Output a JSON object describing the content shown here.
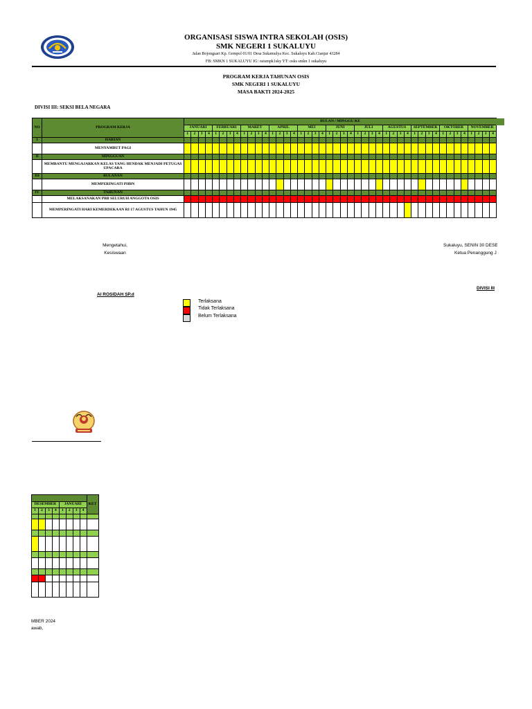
{
  "header": {
    "org_line1": "ORGANISASI SISWA INTRA SEKOLAH (OSIS)",
    "org_line2": "SMK NEGERI 1 SUKALUYU",
    "address": "Jalan Bojongsari Kp. Gempol 01/01 Desa Sukamulya Kec. Sukaluyu Kab.Cianjur 43284",
    "social": "FB: SMKN 1 SUKALUYU IG: osismpk1sky YT: osks smkn 1 sukaluyu",
    "logo_icon": "school-emblem-icon"
  },
  "title": {
    "line1": "PROGRAM KERJA TAHUNAN OSIS",
    "line2": "SMK NEGERI 1 SUKALUYU",
    "line3": "MASA BAKTI 2024-2025"
  },
  "division": "DIVISI III: SEKSI BELA NEGARA",
  "table": {
    "col_no": "NO",
    "col_program": "PROGRAM KERJA",
    "col_period": "BULAN / MINGGU KE",
    "months": [
      "JANUARI",
      "FEBRUARI",
      "MARET",
      "APRIL",
      "MEI",
      "JUNI",
      "JULI",
      "AGUSTUS",
      "SEPTEMBER",
      "OKTOBER",
      "NOVEMBER"
    ],
    "weeks": [
      "1",
      "2",
      "3",
      "4"
    ],
    "sections": [
      {
        "no": "I",
        "label": "HARIAN"
      },
      {
        "no": "II",
        "label": "MINGGUAN"
      },
      {
        "no": "III",
        "label": "BULANAN"
      },
      {
        "no": "IV",
        "label": "TAHUNAN"
      }
    ],
    "programs": [
      {
        "label": "MENYAMBUT PAGI",
        "status": "all-yellow"
      },
      {
        "label": "MEMBANTU MENGAJARKAN KELAS YANG HENDAK MENJADI PETUGAS UPACARA",
        "status": "all-yellow"
      },
      {
        "label": "MEMPERINGATI PHBN",
        "status": "selected-yellow",
        "weeks_done": [
          13,
          20,
          27,
          33,
          39,
          49
        ]
      },
      {
        "label": "MELAKSANAKAN PBB SELURUH ANGGOTA OSIS",
        "status": "all-red"
      },
      {
        "label": "MEMPERINGATI HARI KEMERDEKAAN RI 17 AGUSTUS TAHUN 1945",
        "status": "selected-yellow",
        "weeks_done": [
          31
        ]
      }
    ]
  },
  "page2": {
    "months": [
      "DESEMBER",
      "JANUARI"
    ],
    "weeks": [
      "1",
      "2",
      "3",
      "4"
    ],
    "col_ket": "KET"
  },
  "signatures": {
    "left_line1": "Mengetahui,",
    "left_line2": "Kesiswaan",
    "left_name": "AI ROSIDAH SP.d",
    "right_line1": "Sukaluyu, SENIN 30 DESE",
    "right_line2": "Ketua Penanggung J",
    "right_name": "DIVISI III",
    "overflow_line1": "MBER 2024",
    "overflow_line2": "awab,"
  },
  "legend": [
    {
      "label": "Terlaksana",
      "color": "#ffff00"
    },
    {
      "label": "Tidak Terlaksana",
      "color": "#ff0000"
    },
    {
      "label": "Belum Terlaksana",
      "color": "#d9d9d9"
    }
  ],
  "colors": {
    "dark_green": "#5d8b32",
    "light_green": "#8fd14f",
    "yellow": "#ffff00",
    "red": "#ff0000"
  },
  "stamp_icon": "osis-stamp-icon"
}
